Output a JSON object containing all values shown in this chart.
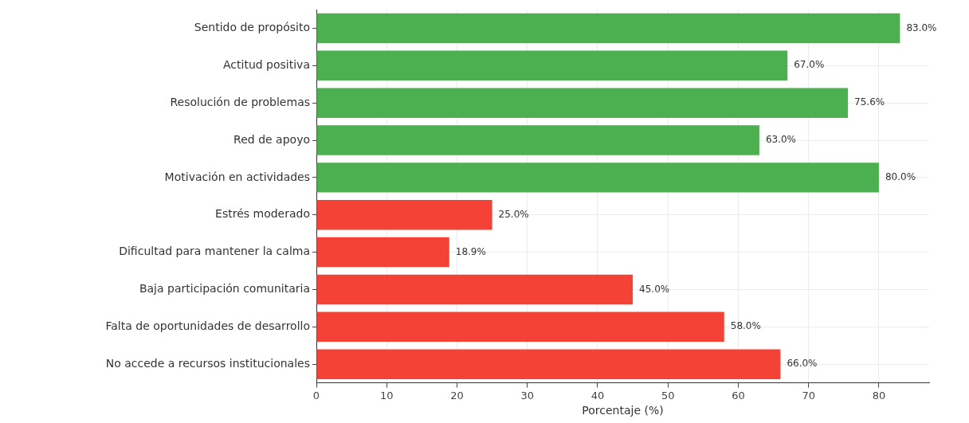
{
  "chart_data": {
    "type": "bar",
    "orientation": "horizontal",
    "xlabel": "Porcentaje (%)",
    "categories": [
      "Sentido de propósito",
      "Actitud positiva",
      "Resolución de problemas",
      "Red de apoyo",
      "Motivación en actividades",
      "Estrés moderado",
      "Dificultad para mantener la calma",
      "Baja participación comunitaria",
      "Falta de oportunidades de desarrollo",
      "No accede a recursos institucionales"
    ],
    "values": [
      83.0,
      67.0,
      75.6,
      63.0,
      80.0,
      25.0,
      18.9,
      45.0,
      58.0,
      66.0
    ],
    "colors": [
      "#4caf50",
      "#4caf50",
      "#4caf50",
      "#4caf50",
      "#4caf50",
      "#f44336",
      "#f44336",
      "#f44336",
      "#f44336",
      "#f44336"
    ],
    "value_labels": [
      "83.0%",
      "67.0%",
      "75.6%",
      "63.0%",
      "80.0%",
      "25.0%",
      "18.9%",
      "45.0%",
      "58.0%",
      "66.0%"
    ],
    "xlim": [
      0,
      87.15
    ],
    "xticks": [
      0,
      10,
      20,
      30,
      40,
      50,
      60,
      70,
      80
    ],
    "grid": true
  }
}
